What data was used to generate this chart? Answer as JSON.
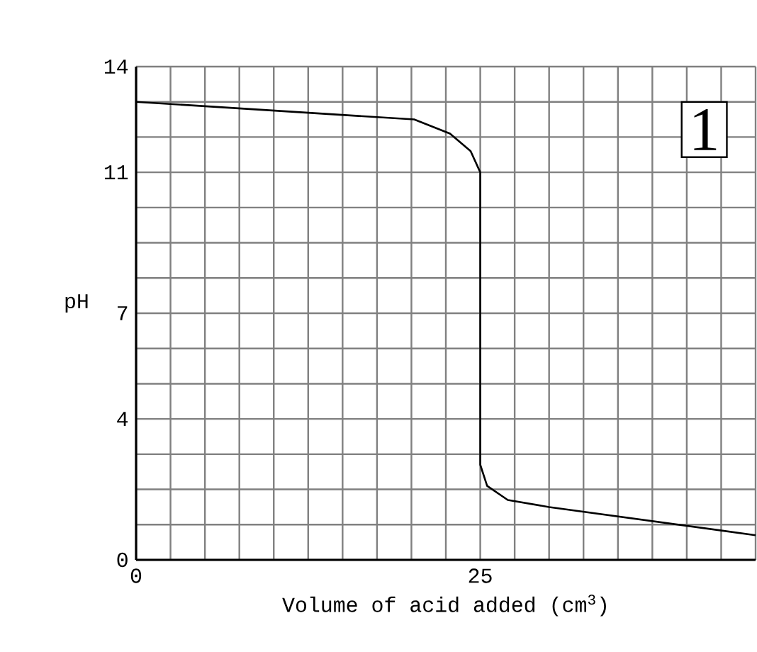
{
  "chart_data": {
    "type": "line",
    "xlabel": "Volume of acid added (cm$^{3}$)",
    "ylabel": "pH",
    "annotations": [
      "1"
    ],
    "x": [
      0,
      20.2,
      22.8,
      24.3,
      25,
      25,
      25.5,
      27,
      30,
      45
    ],
    "series": [
      {
        "color": "#000000",
        "values": [
          13,
          12.5,
          12.1,
          11.6,
          11,
          2.7,
          2.1,
          1.7,
          1.5,
          0.7
        ]
      }
    ],
    "xlim": [
      0,
      45
    ],
    "ylim": [
      0,
      14
    ],
    "xticks": [
      0,
      {
        "value": 2.5,
        "label": null
      },
      {
        "value": 5,
        "label": null
      },
      {
        "value": 7.5,
        "label": null
      },
      {
        "value": 10,
        "label": null
      },
      {
        "value": 12.5,
        "label": null
      },
      {
        "value": 15,
        "label": null
      },
      {
        "value": 17.5,
        "label": null
      },
      {
        "value": 20,
        "label": null
      },
      {
        "value": 22.5,
        "label": null
      },
      25,
      {
        "value": 27.5,
        "label": null
      },
      {
        "value": 30,
        "label": null
      },
      {
        "value": 32.5,
        "label": null
      },
      {
        "value": 35,
        "label": null
      },
      {
        "value": 37.5,
        "label": null
      },
      {
        "value": 40,
        "label": null
      },
      {
        "value": 42.5,
        "label": null
      },
      {
        "value": 45,
        "label": null
      }
    ],
    "yticks": [
      0,
      {
        "value": 1,
        "label": null
      },
      {
        "value": 2,
        "label": null
      },
      {
        "value": 3,
        "label": null
      },
      4,
      {
        "value": 5,
        "label": null
      },
      {
        "value": 6,
        "label": null
      },
      7,
      {
        "value": 8,
        "label": null
      },
      {
        "value": 9,
        "label": null
      },
      {
        "value": 10,
        "label": null
      },
      11,
      {
        "value": 12,
        "label": null
      },
      {
        "value": 13,
        "label": null
      },
      14
    ],
    "grid": true,
    "marker": "none",
    "line_style": "solid"
  }
}
